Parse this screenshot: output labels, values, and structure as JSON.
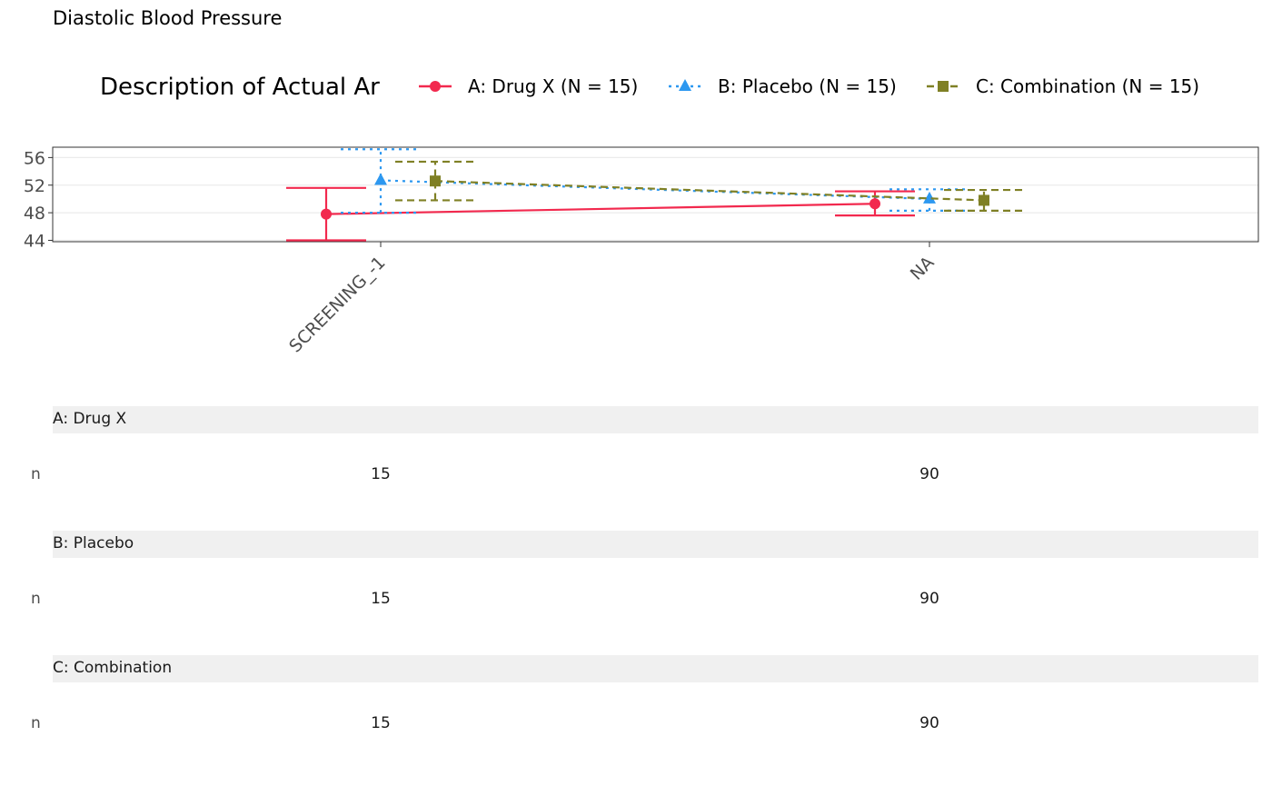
{
  "title": "Diastolic Blood Pressure",
  "colors": {
    "series_a": "#f2294e",
    "series_b": "#2d98f0",
    "series_c": "#7f8025",
    "axis_text": "#4d4d4d",
    "grid": "#ebebeb",
    "strip_bg": "#f0f0f0"
  },
  "chart_data": {
    "type": "line",
    "legend_title": "Description of Actual Ar",
    "legend_position": "top",
    "categories": [
      "SCREENING_-1",
      "NA"
    ],
    "ylim": [
      43.8,
      57.5
    ],
    "y_ticks": [
      "44",
      "48",
      "52",
      "56"
    ],
    "grid": true,
    "series": [
      {
        "name": "A: Drug X (N = 15)",
        "marker": "circle",
        "line": "solid",
        "values": [
          47.8,
          49.3
        ],
        "ci_lower": [
          44.0,
          47.6
        ],
        "ci_upper": [
          51.6,
          51.1
        ]
      },
      {
        "name": "B: Placebo (N = 15)",
        "marker": "triangle",
        "line": "dotted",
        "values": [
          52.7,
          50.0
        ],
        "ci_lower": [
          48.0,
          48.3
        ],
        "ci_upper": [
          57.2,
          51.4
        ]
      },
      {
        "name": "C: Combination (N = 15)",
        "marker": "square",
        "line": "dashed",
        "values": [
          52.6,
          49.8
        ],
        "ci_lower": [
          49.8,
          48.3
        ],
        "ci_upper": [
          55.4,
          51.3
        ]
      }
    ]
  },
  "table": {
    "groups": [
      {
        "label": "A: Drug X",
        "row_label": "n",
        "values": [
          "15",
          "90"
        ]
      },
      {
        "label": "B: Placebo",
        "row_label": "n",
        "values": [
          "15",
          "90"
        ]
      },
      {
        "label": "C: Combination",
        "row_label": "n",
        "values": [
          "15",
          "90"
        ]
      }
    ]
  }
}
